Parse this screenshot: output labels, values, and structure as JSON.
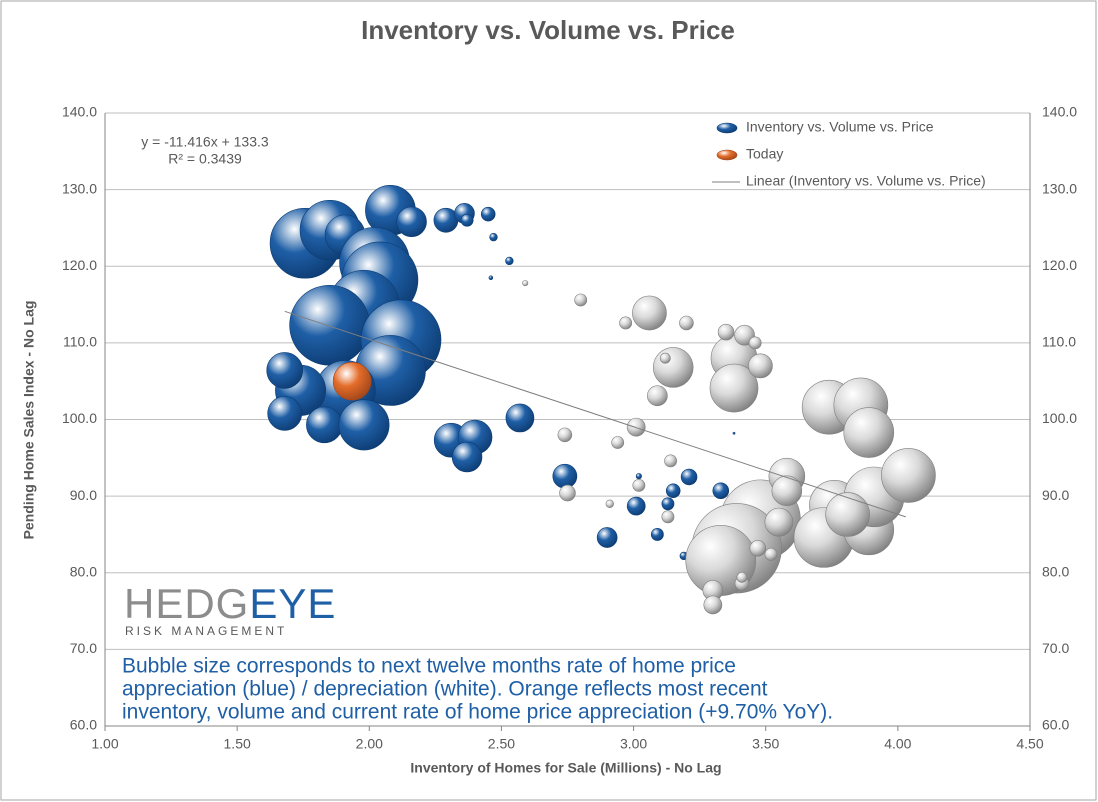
{
  "chart_data": {
    "type": "bubble",
    "title": "Inventory vs. Volume vs. Price",
    "x_label": "Inventory of Homes for Sale (Millions) - No Lag",
    "y_label": "Pending Home Sales Index - No Lag",
    "xlim": [
      1.0,
      4.5
    ],
    "xticks": [
      {
        "value": 1.0,
        "label": "1.00"
      },
      {
        "value": 1.5,
        "label": "1.50"
      },
      {
        "value": 2.0,
        "label": "2.00"
      },
      {
        "value": 2.5,
        "label": "2.50"
      },
      {
        "value": 3.0,
        "label": "3.00"
      },
      {
        "value": 3.5,
        "label": "3.50"
      },
      {
        "value": 4.0,
        "label": "4.00"
      },
      {
        "value": 4.5,
        "label": "4.50"
      }
    ],
    "ylim": [
      60,
      140
    ],
    "yticks": [
      {
        "value": 60,
        "label": "60.0"
      },
      {
        "value": 70,
        "label": "70.0"
      },
      {
        "value": 80,
        "label": "80.0"
      },
      {
        "value": 90,
        "label": "90.0"
      },
      {
        "value": 100,
        "label": "100.0"
      },
      {
        "value": 110,
        "label": "110.0"
      },
      {
        "value": 120,
        "label": "120.0"
      },
      {
        "value": 130,
        "label": "130.0"
      },
      {
        "value": 140,
        "label": "140.0"
      }
    ],
    "grid": true,
    "legend": "top-right",
    "series": [
      {
        "name": "Inventory vs. Volume vs. Price",
        "color": "#1f5fa6",
        "edge": "#0d3c73",
        "x": [
          1.757,
          1.851,
          1.908,
          2.08,
          2.02,
          2.04,
          1.98,
          1.85,
          2.12,
          2.08,
          1.91,
          1.74,
          1.68,
          1.68,
          1.83,
          1.98,
          2.16,
          2.29,
          2.36,
          2.37,
          2.45,
          2.47,
          2.53,
          2.46,
          2.31,
          2.4,
          2.37,
          2.57,
          2.74,
          2.9,
          3.01,
          3.15,
          3.21,
          3.13,
          3.09,
          3.19,
          3.33,
          3.02,
          3.38
        ],
        "values": [
          123.0,
          124.7,
          124.1,
          127.3,
          120.5,
          118.2,
          114.9,
          112.3,
          110.4,
          106.4,
          103.8,
          103.8,
          106.4,
          100.8,
          99.3,
          99.3,
          125.8,
          126.0,
          126.9,
          126.0,
          126.8,
          123.8,
          120.7,
          118.5,
          97.3,
          97.7,
          95.1,
          100.2,
          92.6,
          84.6,
          88.7,
          90.7,
          92.5,
          89.0,
          85.0,
          82.2,
          90.7,
          92.6,
          98.2
        ],
        "sizes": [
          32.9,
          24,
          10.7,
          16.8,
          33,
          39,
          33,
          43,
          43,
          33,
          24,
          17,
          8.7,
          7.8,
          8.7,
          17,
          6,
          3.9,
          2.7,
          1,
          1.3,
          0.4,
          0.4,
          0.1,
          7.8,
          7.8,
          6,
          5.3,
          3.9,
          2.7,
          2.2,
          1.3,
          1.7,
          1,
          1,
          0.4,
          1.7,
          0.2,
          0.03
        ]
      },
      {
        "color": "#d9d9d9",
        "edge": "#7f7f7f",
        "x": [
          3.06,
          2.97,
          3.2,
          2.8,
          2.59,
          3.15,
          3.12,
          3.09,
          3.38,
          3.38,
          3.35,
          3.42,
          3.48,
          3.46,
          3.01,
          2.74,
          2.94,
          3.14,
          3.02,
          2.75,
          2.91,
          3.13,
          3.29,
          3.48,
          3.39,
          3.33,
          3.47,
          3.52,
          3.55,
          3.41,
          3.41,
          3.3,
          3.3,
          3.58,
          3.58,
          3.74,
          3.86,
          3.89,
          3.76,
          3.72,
          3.89,
          3.91,
          4.04,
          3.81
        ],
        "values": [
          113.9,
          112.6,
          112.6,
          115.6,
          117.8,
          106.8,
          108.0,
          103.1,
          108.0,
          104.1,
          111.4,
          111.0,
          107.0,
          110.0,
          99.0,
          98.0,
          97.0,
          94.6,
          91.4,
          90.4,
          89.0,
          87.3,
          85.6,
          86.9,
          83.2,
          81.6,
          83.2,
          82.4,
          86.6,
          78.6,
          79.4,
          77.7,
          75.8,
          92.6,
          90.7,
          101.6,
          101.9,
          98.3,
          88.8,
          84.6,
          85.6,
          89.9,
          92.7,
          87.6
        ],
        "sizes": [
          7.8,
          1,
          1.3,
          1,
          0.2,
          10.7,
          0.7,
          2.7,
          14.2,
          15.5,
          1.7,
          2.7,
          3.9,
          1,
          2.2,
          1.3,
          1,
          1,
          1,
          1.7,
          0.4,
          1,
          1,
          43,
          54,
          33,
          1.7,
          1,
          5.3,
          1.3,
          0.7,
          2.7,
          2.2,
          8.7,
          6,
          19.6,
          19.6,
          16.8,
          16.8,
          24,
          16.8,
          24,
          19.6,
          13
        ]
      },
      {
        "name": "Today",
        "color": "#e46c2a",
        "edge": "#a0461a",
        "x": [
          1.935
        ],
        "values": [
          105.0
        ],
        "sizes": [
          9.7
        ]
      }
    ],
    "trendline": {
      "name": "Linear (Inventory vs. Volume vs. Price)",
      "slope": -11.416,
      "intercept": 133.3,
      "x": [
        1.68,
        4.03
      ],
      "color": "#7f7f7f"
    },
    "equation": [
      "y = -11.416x + 133.3",
      "R² = 0.3439"
    ],
    "logo": {
      "brand": [
        "HEDG",
        "EYE"
      ],
      "tagline": "RISK MANAGEMENT"
    },
    "annotation": [
      "Bubble size corresponds to next twelve months rate of home price",
      "appreciation (blue) / depreciation (white). Orange reflects most recent",
      "inventory, volume and current rate of home price appreciation (+9.70% YoY)."
    ]
  }
}
